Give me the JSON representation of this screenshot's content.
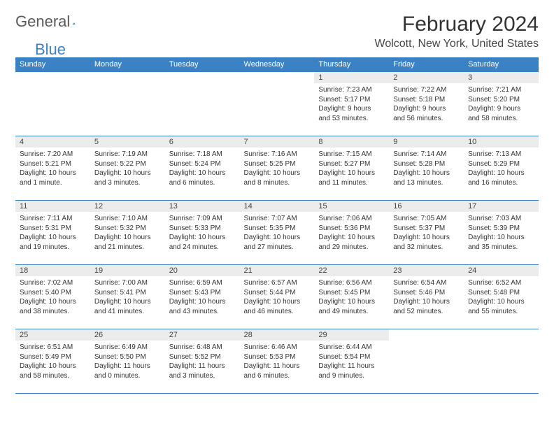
{
  "logo": {
    "text1": "General",
    "text2": "Blue"
  },
  "title": "February 2024",
  "location": "Wolcott, New York, United States",
  "headers": [
    "Sunday",
    "Monday",
    "Tuesday",
    "Wednesday",
    "Thursday",
    "Friday",
    "Saturday"
  ],
  "colors": {
    "header_bg": "#3b82c4",
    "header_text": "#ffffff",
    "daynum_bg": "#ececec",
    "border": "#3b82c4",
    "logo_gray": "#5a5a5a",
    "logo_blue": "#3b82c4"
  },
  "weeks": [
    [
      {
        "num": "",
        "sunrise": "",
        "sunset": "",
        "daylight1": "",
        "daylight2": ""
      },
      {
        "num": "",
        "sunrise": "",
        "sunset": "",
        "daylight1": "",
        "daylight2": ""
      },
      {
        "num": "",
        "sunrise": "",
        "sunset": "",
        "daylight1": "",
        "daylight2": ""
      },
      {
        "num": "",
        "sunrise": "",
        "sunset": "",
        "daylight1": "",
        "daylight2": ""
      },
      {
        "num": "1",
        "sunrise": "Sunrise: 7:23 AM",
        "sunset": "Sunset: 5:17 PM",
        "daylight1": "Daylight: 9 hours",
        "daylight2": "and 53 minutes."
      },
      {
        "num": "2",
        "sunrise": "Sunrise: 7:22 AM",
        "sunset": "Sunset: 5:18 PM",
        "daylight1": "Daylight: 9 hours",
        "daylight2": "and 56 minutes."
      },
      {
        "num": "3",
        "sunrise": "Sunrise: 7:21 AM",
        "sunset": "Sunset: 5:20 PM",
        "daylight1": "Daylight: 9 hours",
        "daylight2": "and 58 minutes."
      }
    ],
    [
      {
        "num": "4",
        "sunrise": "Sunrise: 7:20 AM",
        "sunset": "Sunset: 5:21 PM",
        "daylight1": "Daylight: 10 hours",
        "daylight2": "and 1 minute."
      },
      {
        "num": "5",
        "sunrise": "Sunrise: 7:19 AM",
        "sunset": "Sunset: 5:22 PM",
        "daylight1": "Daylight: 10 hours",
        "daylight2": "and 3 minutes."
      },
      {
        "num": "6",
        "sunrise": "Sunrise: 7:18 AM",
        "sunset": "Sunset: 5:24 PM",
        "daylight1": "Daylight: 10 hours",
        "daylight2": "and 6 minutes."
      },
      {
        "num": "7",
        "sunrise": "Sunrise: 7:16 AM",
        "sunset": "Sunset: 5:25 PM",
        "daylight1": "Daylight: 10 hours",
        "daylight2": "and 8 minutes."
      },
      {
        "num": "8",
        "sunrise": "Sunrise: 7:15 AM",
        "sunset": "Sunset: 5:27 PM",
        "daylight1": "Daylight: 10 hours",
        "daylight2": "and 11 minutes."
      },
      {
        "num": "9",
        "sunrise": "Sunrise: 7:14 AM",
        "sunset": "Sunset: 5:28 PM",
        "daylight1": "Daylight: 10 hours",
        "daylight2": "and 13 minutes."
      },
      {
        "num": "10",
        "sunrise": "Sunrise: 7:13 AM",
        "sunset": "Sunset: 5:29 PM",
        "daylight1": "Daylight: 10 hours",
        "daylight2": "and 16 minutes."
      }
    ],
    [
      {
        "num": "11",
        "sunrise": "Sunrise: 7:11 AM",
        "sunset": "Sunset: 5:31 PM",
        "daylight1": "Daylight: 10 hours",
        "daylight2": "and 19 minutes."
      },
      {
        "num": "12",
        "sunrise": "Sunrise: 7:10 AM",
        "sunset": "Sunset: 5:32 PM",
        "daylight1": "Daylight: 10 hours",
        "daylight2": "and 21 minutes."
      },
      {
        "num": "13",
        "sunrise": "Sunrise: 7:09 AM",
        "sunset": "Sunset: 5:33 PM",
        "daylight1": "Daylight: 10 hours",
        "daylight2": "and 24 minutes."
      },
      {
        "num": "14",
        "sunrise": "Sunrise: 7:07 AM",
        "sunset": "Sunset: 5:35 PM",
        "daylight1": "Daylight: 10 hours",
        "daylight2": "and 27 minutes."
      },
      {
        "num": "15",
        "sunrise": "Sunrise: 7:06 AM",
        "sunset": "Sunset: 5:36 PM",
        "daylight1": "Daylight: 10 hours",
        "daylight2": "and 29 minutes."
      },
      {
        "num": "16",
        "sunrise": "Sunrise: 7:05 AM",
        "sunset": "Sunset: 5:37 PM",
        "daylight1": "Daylight: 10 hours",
        "daylight2": "and 32 minutes."
      },
      {
        "num": "17",
        "sunrise": "Sunrise: 7:03 AM",
        "sunset": "Sunset: 5:39 PM",
        "daylight1": "Daylight: 10 hours",
        "daylight2": "and 35 minutes."
      }
    ],
    [
      {
        "num": "18",
        "sunrise": "Sunrise: 7:02 AM",
        "sunset": "Sunset: 5:40 PM",
        "daylight1": "Daylight: 10 hours",
        "daylight2": "and 38 minutes."
      },
      {
        "num": "19",
        "sunrise": "Sunrise: 7:00 AM",
        "sunset": "Sunset: 5:41 PM",
        "daylight1": "Daylight: 10 hours",
        "daylight2": "and 41 minutes."
      },
      {
        "num": "20",
        "sunrise": "Sunrise: 6:59 AM",
        "sunset": "Sunset: 5:43 PM",
        "daylight1": "Daylight: 10 hours",
        "daylight2": "and 43 minutes."
      },
      {
        "num": "21",
        "sunrise": "Sunrise: 6:57 AM",
        "sunset": "Sunset: 5:44 PM",
        "daylight1": "Daylight: 10 hours",
        "daylight2": "and 46 minutes."
      },
      {
        "num": "22",
        "sunrise": "Sunrise: 6:56 AM",
        "sunset": "Sunset: 5:45 PM",
        "daylight1": "Daylight: 10 hours",
        "daylight2": "and 49 minutes."
      },
      {
        "num": "23",
        "sunrise": "Sunrise: 6:54 AM",
        "sunset": "Sunset: 5:46 PM",
        "daylight1": "Daylight: 10 hours",
        "daylight2": "and 52 minutes."
      },
      {
        "num": "24",
        "sunrise": "Sunrise: 6:52 AM",
        "sunset": "Sunset: 5:48 PM",
        "daylight1": "Daylight: 10 hours",
        "daylight2": "and 55 minutes."
      }
    ],
    [
      {
        "num": "25",
        "sunrise": "Sunrise: 6:51 AM",
        "sunset": "Sunset: 5:49 PM",
        "daylight1": "Daylight: 10 hours",
        "daylight2": "and 58 minutes."
      },
      {
        "num": "26",
        "sunrise": "Sunrise: 6:49 AM",
        "sunset": "Sunset: 5:50 PM",
        "daylight1": "Daylight: 11 hours",
        "daylight2": "and 0 minutes."
      },
      {
        "num": "27",
        "sunrise": "Sunrise: 6:48 AM",
        "sunset": "Sunset: 5:52 PM",
        "daylight1": "Daylight: 11 hours",
        "daylight2": "and 3 minutes."
      },
      {
        "num": "28",
        "sunrise": "Sunrise: 6:46 AM",
        "sunset": "Sunset: 5:53 PM",
        "daylight1": "Daylight: 11 hours",
        "daylight2": "and 6 minutes."
      },
      {
        "num": "29",
        "sunrise": "Sunrise: 6:44 AM",
        "sunset": "Sunset: 5:54 PM",
        "daylight1": "Daylight: 11 hours",
        "daylight2": "and 9 minutes."
      },
      {
        "num": "",
        "sunrise": "",
        "sunset": "",
        "daylight1": "",
        "daylight2": ""
      },
      {
        "num": "",
        "sunrise": "",
        "sunset": "",
        "daylight1": "",
        "daylight2": ""
      }
    ]
  ]
}
